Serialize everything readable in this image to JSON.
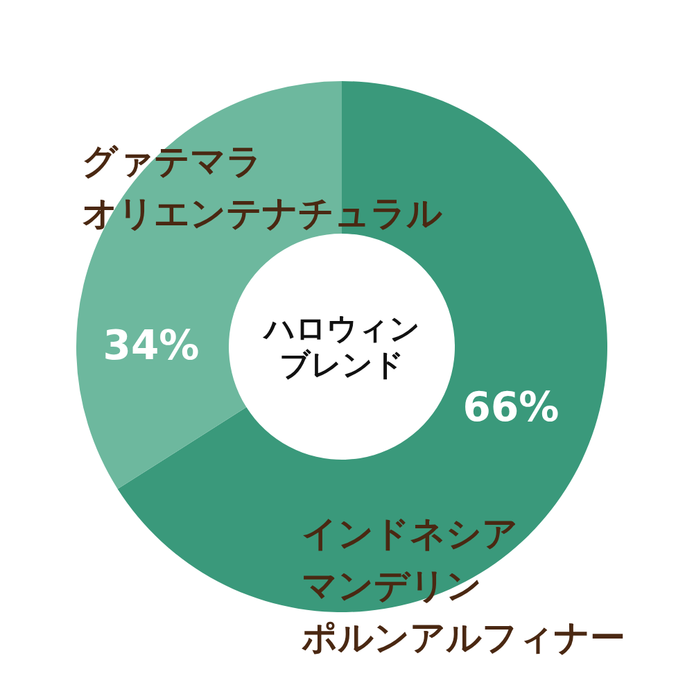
{
  "chart_data": {
    "type": "donut",
    "title": "ハロウィンブレンド",
    "categories": [
      "インドネシアマンデリンポルンアルフィナー",
      "グァテマラオリエンテナチュラル"
    ],
    "values": [
      66,
      34
    ],
    "colors": [
      "#3a997b",
      "#6db89e"
    ],
    "value_labels": [
      "66%",
      "34%"
    ]
  }
}
